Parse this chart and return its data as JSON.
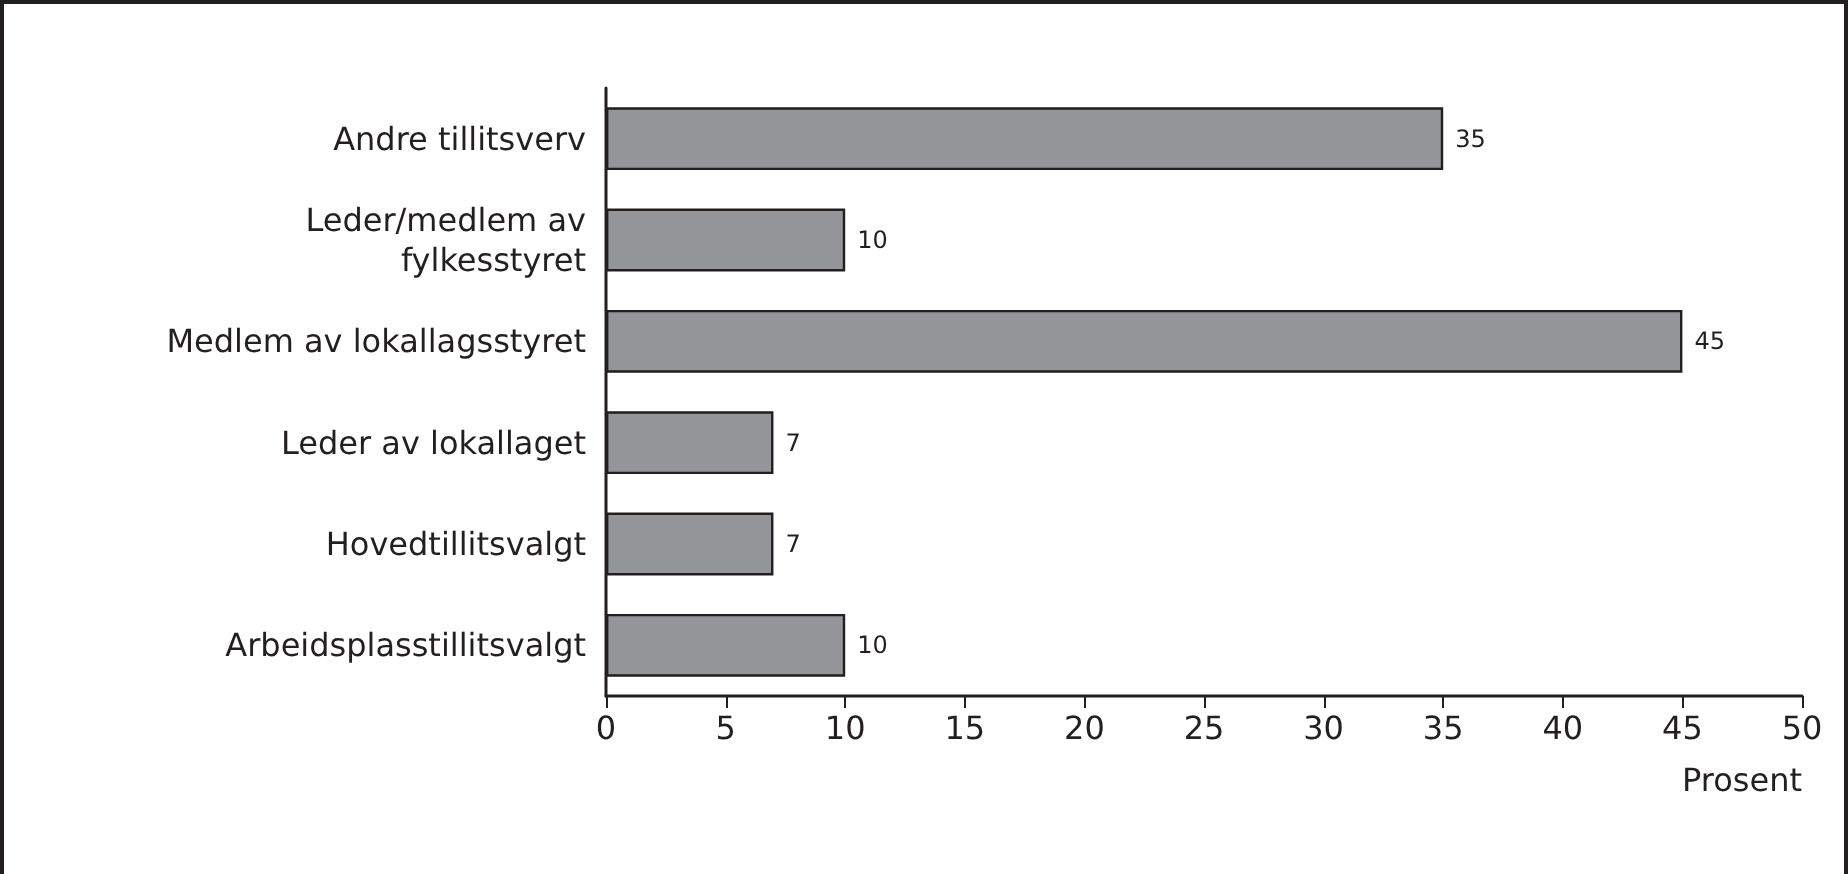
{
  "chart_data": {
    "type": "bar",
    "orientation": "horizontal",
    "xlabel": "Prosent",
    "categories": [
      "Andre tillitsverv",
      "Leder/medlem av\nfylkesstyret",
      "Medlem av lokallagsstyret",
      "Leder av lokallaget",
      "Hovedtillitsvalgt",
      "Arbeidsplasstillitsvalgt"
    ],
    "values": [
      35,
      10,
      45,
      7,
      7,
      10
    ],
    "color": "#939598",
    "data_labels": true,
    "grid": false,
    "xlim": [
      0,
      50
    ],
    "xticks": [
      0,
      5,
      10,
      15,
      20,
      25,
      30,
      35,
      40,
      45,
      50
    ]
  }
}
